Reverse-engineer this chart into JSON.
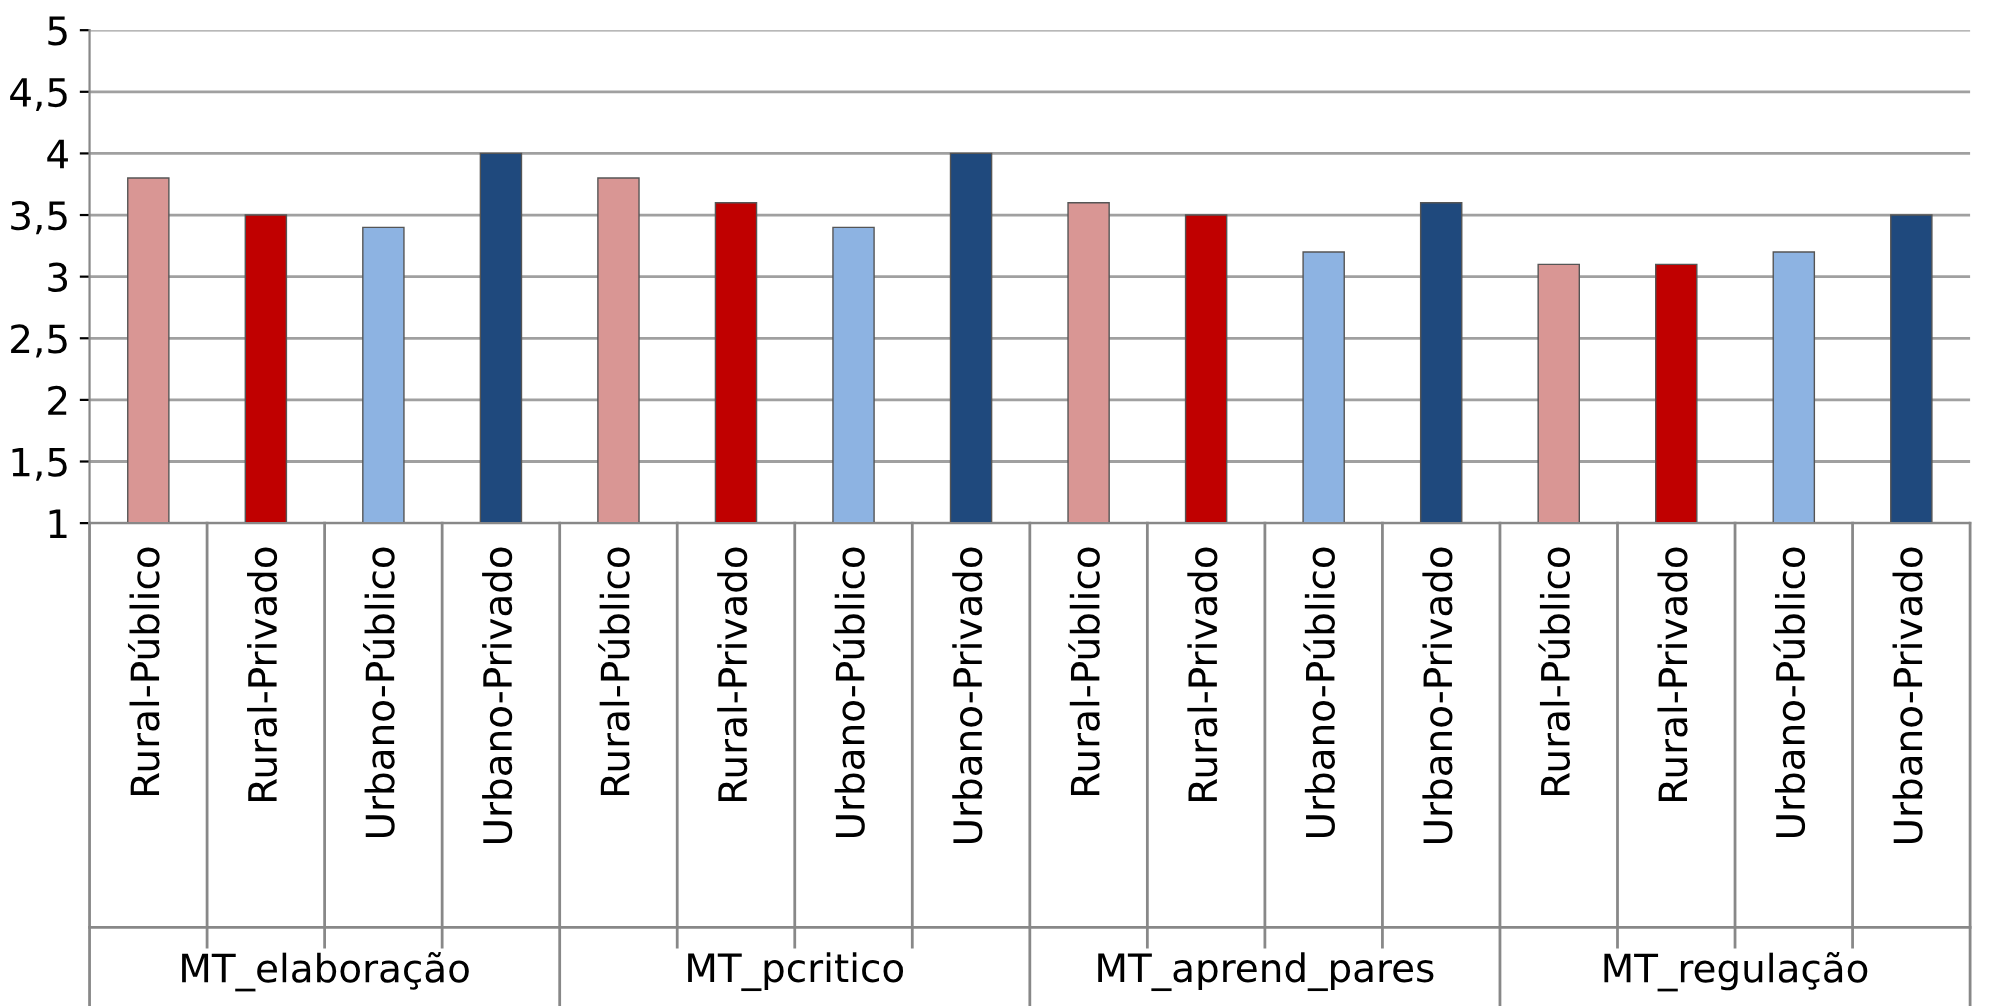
{
  "chart_data": {
    "type": "bar",
    "categories": [
      "Rural-Público",
      "Rural-Privado",
      "Urbano-Público",
      "Urbano-Privado",
      "Rural-Público",
      "Rural-Privado",
      "Urbano-Público",
      "Urbano-Privado",
      "Rural-Público",
      "Rural-Privado",
      "Urbano-Público",
      "Urbano-Privado",
      "Rural-Público",
      "Rural-Privado",
      "Urbano-Público",
      "Urbano-Privado"
    ],
    "values": [
      3.8,
      3.5,
      3.4,
      4.0,
      3.8,
      3.6,
      3.4,
      4.0,
      3.6,
      3.5,
      3.2,
      3.6,
      3.1,
      3.1,
      3.2,
      3.5
    ],
    "colors": [
      "#d99694",
      "#c00000",
      "#8db3e2",
      "#1f497d",
      "#d99694",
      "#c00000",
      "#8db3e2",
      "#1f497d",
      "#d99694",
      "#c00000",
      "#8db3e2",
      "#1f497d",
      "#d99694",
      "#c00000",
      "#8db3e2",
      "#1f497d"
    ],
    "annotations": [
      "MT_elaboração",
      "MT_pcritico",
      "MT_aprend_pares",
      "MT_regulação"
    ],
    "ylim": [
      1,
      5
    ],
    "yticks": [
      1,
      {
        "value": 1.5,
        "label": "1,5"
      },
      2,
      {
        "value": 2.5,
        "label": "2,5"
      },
      3,
      {
        "value": 3.5,
        "label": "3,5"
      },
      4,
      {
        "value": 4.5,
        "label": "4,5"
      },
      5
    ],
    "grid": "y"
  }
}
